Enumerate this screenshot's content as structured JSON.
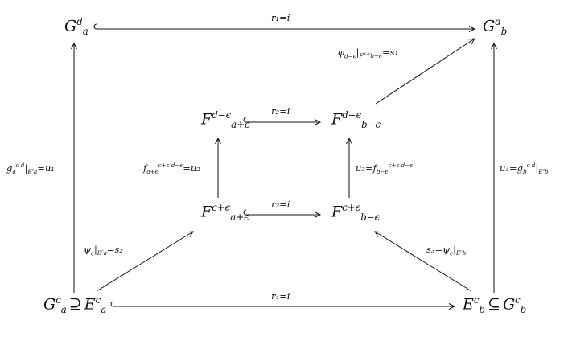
{
  "nodes": {
    "Gad": {
      "base": "G",
      "sup": "d",
      "sub": "a"
    },
    "Gbd": {
      "base": "G",
      "sup": "d",
      "sub": "b"
    },
    "Fa_top": {
      "base": "F",
      "sup": "d−ϵ",
      "sub": "a+ϵ"
    },
    "Fb_top": {
      "base": "F",
      "sup": "d−ϵ",
      "sub": "b−ϵ"
    },
    "Fa_bot": {
      "base": "F",
      "sup": "c+ϵ",
      "sub": "a+ϵ"
    },
    "Fb_bot": {
      "base": "F",
      "sup": "c+ϵ",
      "sub": "b−ϵ"
    },
    "Gac": {
      "base": "G",
      "sup": "c",
      "sub": "a",
      "rel": "⊇",
      "base2": "E",
      "sup2": "c",
      "sub2": "a"
    },
    "Ebc": {
      "base": "E",
      "sup": "c",
      "sub": "b",
      "rel": "⊆",
      "base2": "G",
      "sup2": "c",
      "sub2": "b"
    }
  },
  "edges": {
    "r1": "r₁=i",
    "r2": "r₂=i",
    "r3": "r₃=i",
    "r4": "r₄=i",
    "u1": {
      "head": "g",
      "sup": "c d",
      "sub": "a",
      "restr": "E",
      "restr_sup": "c",
      "restr_sub": "a",
      "tail": "=u₁"
    },
    "u2": {
      "head": "f",
      "sup": "c+ϵ d−ϵ",
      "sub": "a+ϵ",
      "tail": "=u₂"
    },
    "u3": {
      "head": "u₃=f",
      "sup": "c+ϵ d−ϵ",
      "sub": "b−ϵ"
    },
    "u4": {
      "head": "u₄=g",
      "sup": "c d",
      "sub": "b",
      "restr": "E",
      "restr_sup": "c",
      "restr_sub": "b"
    },
    "s1": {
      "head": "φ",
      "head_sub": "d−ϵ",
      "restr": "F",
      "restr_sup": "d−ϵ",
      "restr_sub": "b−ϵ",
      "tail": "=s₁"
    },
    "s2": {
      "head": "ψ",
      "head_sub": "c",
      "restr": "E",
      "restr_sup": "c",
      "restr_sub": "a",
      "tail": "=s₂"
    },
    "s3": {
      "head": "s₃=ψ",
      "head_sub": "c",
      "restr": "E",
      "restr_sup": "c",
      "restr_sub": "b"
    }
  }
}
